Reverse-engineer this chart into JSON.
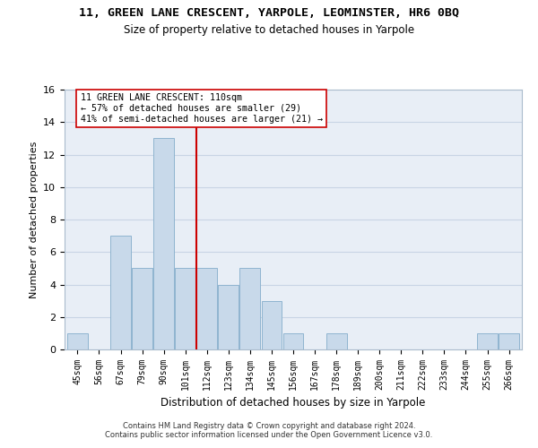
{
  "title1": "11, GREEN LANE CRESCENT, YARPOLE, LEOMINSTER, HR6 0BQ",
  "title2": "Size of property relative to detached houses in Yarpole",
  "xlabel": "Distribution of detached houses by size in Yarpole",
  "ylabel": "Number of detached properties",
  "categories": [
    "45sqm",
    "56sqm",
    "67sqm",
    "79sqm",
    "90sqm",
    "101sqm",
    "112sqm",
    "123sqm",
    "134sqm",
    "145sqm",
    "156sqm",
    "167sqm",
    "178sqm",
    "189sqm",
    "200sqm",
    "211sqm",
    "222sqm",
    "233sqm",
    "244sqm",
    "255sqm",
    "266sqm"
  ],
  "values": [
    1,
    0,
    7,
    5,
    13,
    5,
    5,
    4,
    5,
    3,
    1,
    0,
    1,
    0,
    0,
    0,
    0,
    0,
    0,
    1,
    1
  ],
  "bar_color": "#c8d9ea",
  "bar_edge_color": "#8fb4d0",
  "vline_color": "#cc0000",
  "annotation_text": "11 GREEN LANE CRESCENT: 110sqm\n← 57% of detached houses are smaller (29)\n41% of semi-detached houses are larger (21) →",
  "annotation_box_color": "#ffffff",
  "annotation_box_edge": "#cc0000",
  "ylim": [
    0,
    16
  ],
  "yticks": [
    0,
    2,
    4,
    6,
    8,
    10,
    12,
    14,
    16
  ],
  "footnote": "Contains HM Land Registry data © Crown copyright and database right 2024.\nContains public sector information licensed under the Open Government Licence v3.0.",
  "grid_color": "#c8d4e4",
  "bg_color": "#e8eef6"
}
